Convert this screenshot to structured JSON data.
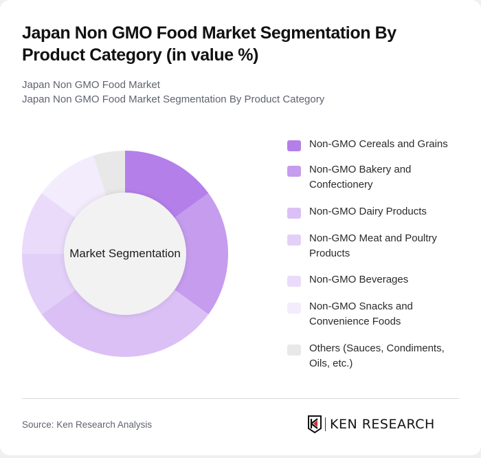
{
  "header": {
    "title": "Japan Non GMO Food Market Segmentation By Product Category (in value %)",
    "subtitle_line1": "Japan Non GMO Food Market",
    "subtitle_line2": "Japan Non GMO Food Market Segmentation By Product Category"
  },
  "chart": {
    "center_label": "Market Segmentation"
  },
  "chart_data": {
    "type": "pie",
    "variant": "donut",
    "title": "Japan Non GMO Food Market Segmentation By Product Category (in value %)",
    "center_label": "Market Segmentation",
    "categories": [
      "Non-GMO Cereals and Grains",
      "Non-GMO Bakery and Confectionery",
      "Non-GMO Dairy Products",
      "Non-GMO Meat and Poultry Products",
      "Non-GMO Beverages",
      "Non-GMO Snacks and Convenience Foods",
      "Others (Sauces, Condiments, Oils, etc.)"
    ],
    "values": [
      15,
      20,
      30,
      10,
      10,
      10,
      5
    ],
    "colors": [
      "#B57FEA",
      "#C69CEE",
      "#DBC0F6",
      "#E3D0F8",
      "#EADBFA",
      "#F3ECFD",
      "#E8E8E8"
    ],
    "unit": "%",
    "legend_position": "right"
  },
  "legend": {
    "items": [
      {
        "label": "Non-GMO Cereals and Grains",
        "color": "#B57FEA"
      },
      {
        "label": "Non-GMO Bakery and Confectionery",
        "color": "#C69CEE"
      },
      {
        "label": "Non-GMO Dairy Products",
        "color": "#DBC0F6"
      },
      {
        "label": "Non-GMO Meat and Poultry Products",
        "color": "#E3D0F8"
      },
      {
        "label": "Non-GMO Beverages",
        "color": "#EADBFA"
      },
      {
        "label": "Non-GMO Snacks and Convenience Foods",
        "color": "#F3ECFD"
      },
      {
        "label": "Others (Sauces, Condiments, Oils, etc.)",
        "color": "#E8E8E8"
      }
    ]
  },
  "footer": {
    "source": "Source: Ken Research Analysis",
    "logo_text": "KEN RESEARCH"
  }
}
